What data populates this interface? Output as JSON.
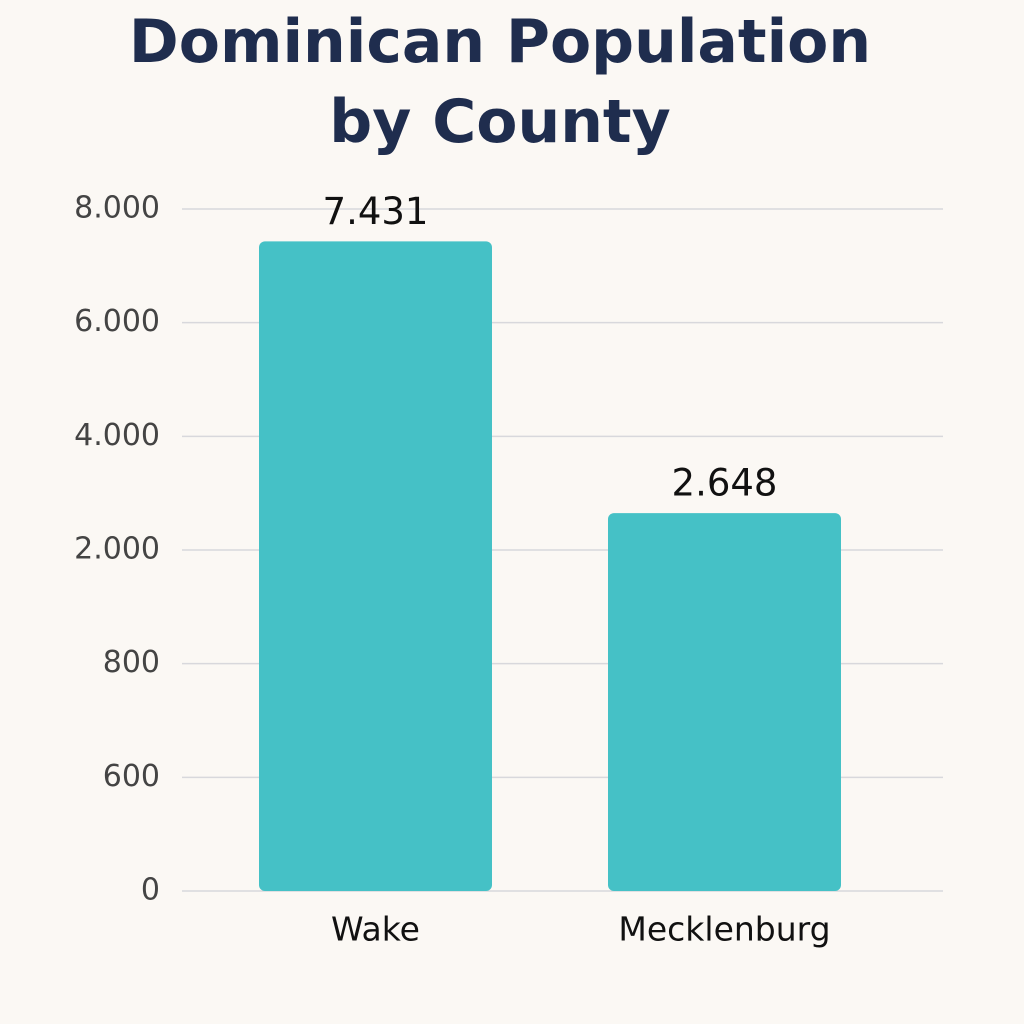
{
  "chart_data": {
    "type": "bar",
    "title": "Dominican Population by County",
    "categories": [
      "Wake",
      "Mecklenburg"
    ],
    "values": [
      7431,
      2648
    ],
    "value_labels": [
      "7.431",
      "2.648"
    ],
    "color": "#45c1c6",
    "ylim": [
      0,
      8000
    ],
    "yticks": [
      0,
      600,
      800,
      {
        "value": 2000,
        "label": "2.000"
      },
      {
        "value": 4000,
        "label": "4.000"
      },
      {
        "value": 6000,
        "label": "6.000"
      },
      {
        "value": 8000,
        "label": "8.000"
      }
    ],
    "grid": true
  }
}
